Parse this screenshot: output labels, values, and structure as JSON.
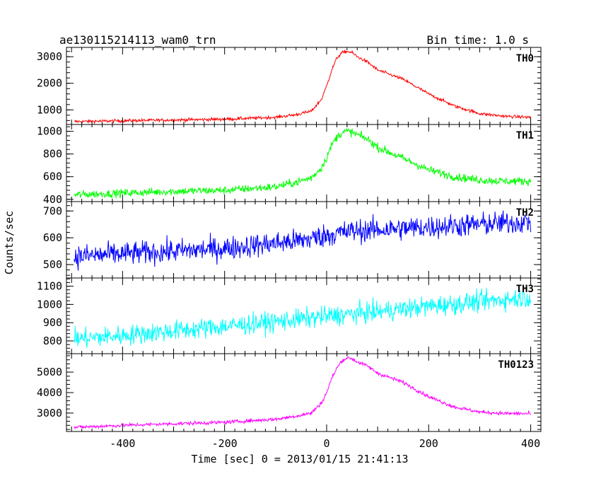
{
  "header": {
    "title": "ae130115214113_wam0_trn",
    "bin_time": "Bin time: 1.0 s"
  },
  "axes": {
    "xlabel": "Time [sec] 0 = 2013/01/15 21:41:13",
    "ylabel": "Counts/sec"
  },
  "chart_data": {
    "type": "line",
    "title": "ae130115214113_wam0_trn",
    "subtitle": "Bin time: 1.0 s",
    "xlabel": "Time [sec] 0 = 2013/01/15 21:41:13",
    "ylabel": "Counts/sec",
    "xlim": [
      -510,
      420
    ],
    "x_ticks": [
      -400,
      -200,
      0,
      200,
      400
    ],
    "grid": false,
    "legend": "none",
    "panels": [
      {
        "name": "TH0",
        "color": "#ff0000",
        "ylim": [
          450,
          3350
        ],
        "y_ticks": [
          1000,
          2000,
          3000
        ],
        "noise": 30,
        "series": {
          "x": [
            -495,
            -400,
            -300,
            -200,
            -100,
            -60,
            -30,
            -10,
            0,
            10,
            20,
            30,
            40,
            50,
            60,
            80,
            100,
            150,
            200,
            250,
            300,
            350,
            400
          ],
          "y": [
            560,
            590,
            620,
            650,
            720,
            820,
            950,
            1400,
            1900,
            2500,
            2950,
            3150,
            3200,
            3150,
            3000,
            2800,
            2500,
            2150,
            1600,
            1150,
            860,
            760,
            720
          ]
        }
      },
      {
        "name": "TH1",
        "color": "#00ff00",
        "ylim": [
          380,
          1060
        ],
        "y_ticks": [
          400,
          600,
          800,
          1000
        ],
        "noise": 18,
        "series": {
          "x": [
            -495,
            -400,
            -300,
            -200,
            -100,
            -60,
            -30,
            -10,
            0,
            10,
            20,
            30,
            40,
            50,
            60,
            80,
            100,
            150,
            200,
            250,
            300,
            350,
            400
          ],
          "y": [
            440,
            455,
            470,
            480,
            510,
            550,
            590,
            680,
            770,
            880,
            950,
            990,
            1000,
            990,
            970,
            930,
            860,
            760,
            660,
            600,
            570,
            560,
            560
          ]
        }
      },
      {
        "name": "TH2",
        "color": "#0000ff",
        "ylim": [
          450,
          735
        ],
        "y_ticks": [
          500,
          600,
          700
        ],
        "noise": 22,
        "series": {
          "x": [
            -495,
            -400,
            -300,
            -200,
            -100,
            -50,
            0,
            50,
            100,
            200,
            300,
            400
          ],
          "y": [
            530,
            540,
            550,
            560,
            580,
            590,
            610,
            625,
            630,
            640,
            650,
            660
          ]
        }
      },
      {
        "name": "TH3",
        "color": "#00ffff",
        "ylim": [
          730,
          1145
        ],
        "y_ticks": [
          800,
          900,
          1000,
          1100
        ],
        "noise": 28,
        "series": {
          "x": [
            -495,
            -400,
            -300,
            -200,
            -100,
            0,
            100,
            200,
            300,
            400
          ],
          "y": [
            810,
            830,
            855,
            880,
            905,
            935,
            960,
            990,
            1015,
            1040
          ]
        }
      },
      {
        "name": "TH0123",
        "color": "#ff00ff",
        "ylim": [
          2100,
          5900
        ],
        "y_ticks": [
          3000,
          4000,
          5000
        ],
        "noise": 45,
        "series": {
          "x": [
            -495,
            -400,
            -300,
            -200,
            -100,
            -60,
            -30,
            -10,
            0,
            10,
            20,
            30,
            40,
            50,
            60,
            80,
            100,
            150,
            200,
            250,
            300,
            350,
            400
          ],
          "y": [
            2300,
            2400,
            2480,
            2550,
            2700,
            2850,
            3000,
            3500,
            4000,
            4700,
            5200,
            5550,
            5700,
            5650,
            5500,
            5300,
            4950,
            4500,
            3800,
            3300,
            3050,
            2980,
            2970
          ]
        }
      }
    ]
  }
}
